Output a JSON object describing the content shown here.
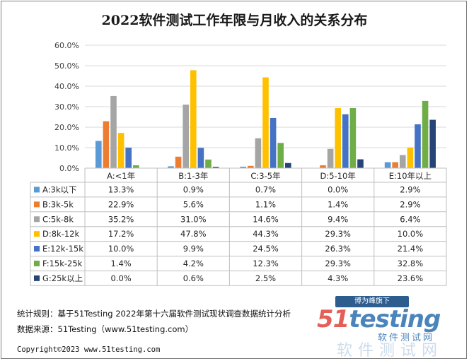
{
  "title": "2022软件测试工作年限与月收入的关系分布",
  "chart_data": {
    "type": "bar",
    "categories": [
      "A:<1年",
      "B:1-3年",
      "C:3-5年",
      "D:5-10年",
      "E:10年以上"
    ],
    "series": [
      {
        "name": "A:3k以下",
        "color": "#5b9bd5",
        "values": [
          13.3,
          0.9,
          0.7,
          0.0,
          2.9
        ]
      },
      {
        "name": "B:3k-5k",
        "color": "#ed7d31",
        "values": [
          22.9,
          5.6,
          1.1,
          1.4,
          2.9
        ]
      },
      {
        "name": "C:5k-8k",
        "color": "#a5a5a5",
        "values": [
          35.2,
          31.0,
          14.6,
          9.4,
          6.4
        ]
      },
      {
        "name": "D:8k-12k",
        "color": "#ffc000",
        "values": [
          17.2,
          47.8,
          44.3,
          29.3,
          10.0
        ]
      },
      {
        "name": "E:12k-15k",
        "color": "#4472c4",
        "values": [
          10.0,
          9.9,
          24.5,
          26.3,
          21.4
        ]
      },
      {
        "name": "F:15k-25k",
        "color": "#70ad47",
        "values": [
          1.4,
          4.2,
          12.3,
          29.3,
          32.8
        ]
      },
      {
        "name": "G:25k以上",
        "color": "#264478",
        "values": [
          0.0,
          0.6,
          2.5,
          4.3,
          23.6
        ]
      }
    ],
    "ylim": [
      0,
      60
    ],
    "yticks": [
      "0.0%",
      "10.0%",
      "20.0%",
      "30.0%",
      "40.0%",
      "50.0%",
      "60.0%"
    ],
    "table_values": [
      [
        "13.3%",
        "0.9%",
        "0.7%",
        "0.0%",
        "2.9%"
      ],
      [
        "22.9%",
        "5.6%",
        "1.1%",
        "1.4%",
        "2.9%"
      ],
      [
        "35.2%",
        "31.0%",
        "14.6%",
        "9.4%",
        "6.4%"
      ],
      [
        "17.2%",
        "47.8%",
        "44.3%",
        "29.3%",
        "10.0%"
      ],
      [
        "10.0%",
        "9.9%",
        "24.5%",
        "26.3%",
        "21.4%"
      ],
      [
        "1.4%",
        "4.2%",
        "12.3%",
        "29.3%",
        "32.8%"
      ],
      [
        "0.0%",
        "0.6%",
        "2.5%",
        "4.3%",
        "23.6%"
      ]
    ],
    "grid": true,
    "legend": "data-table"
  },
  "footer": {
    "rule": "统计规则：基于51Testing 2022年第十六届软件测试现状调查数据统计分析",
    "source": "数据来源：51Testing（www.51testing.com）"
  },
  "copyright": "Copyright©2023 www.51testing.com",
  "watermark": {
    "badge": "博为峰旗下",
    "logo_a": "51",
    "logo_b": "testing",
    "sub": "软件测试网",
    "sub2": "软件测试网"
  }
}
